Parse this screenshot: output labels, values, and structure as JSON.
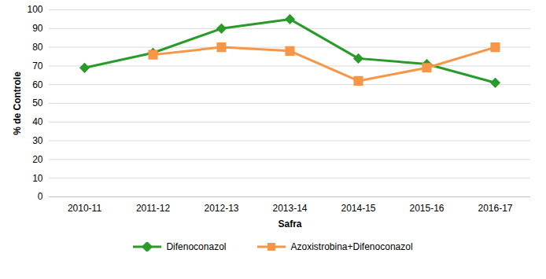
{
  "chart_data": {
    "type": "line",
    "x_label": "Safra",
    "y_label": "% de Controle",
    "categories": [
      "2010-11",
      "2011-12",
      "2012-13",
      "2013-14",
      "2014-15",
      "2015-16",
      "2016-17"
    ],
    "series": [
      {
        "name": "Difenoconazol",
        "color": "#2a9a2a",
        "marker": "diamond",
        "values": [
          69,
          77,
          90,
          95,
          74,
          71,
          61
        ]
      },
      {
        "name": "Azoxistrobina+Difenoconazol",
        "color": "#f79646",
        "marker": "square",
        "values": [
          null,
          76,
          80,
          78,
          62,
          69,
          80
        ]
      }
    ],
    "ylim": [
      0,
      100
    ],
    "yticks": [
      0,
      10,
      20,
      30,
      40,
      50,
      60,
      70,
      80,
      90,
      100
    ],
    "grid": true,
    "legend": "bottom"
  }
}
